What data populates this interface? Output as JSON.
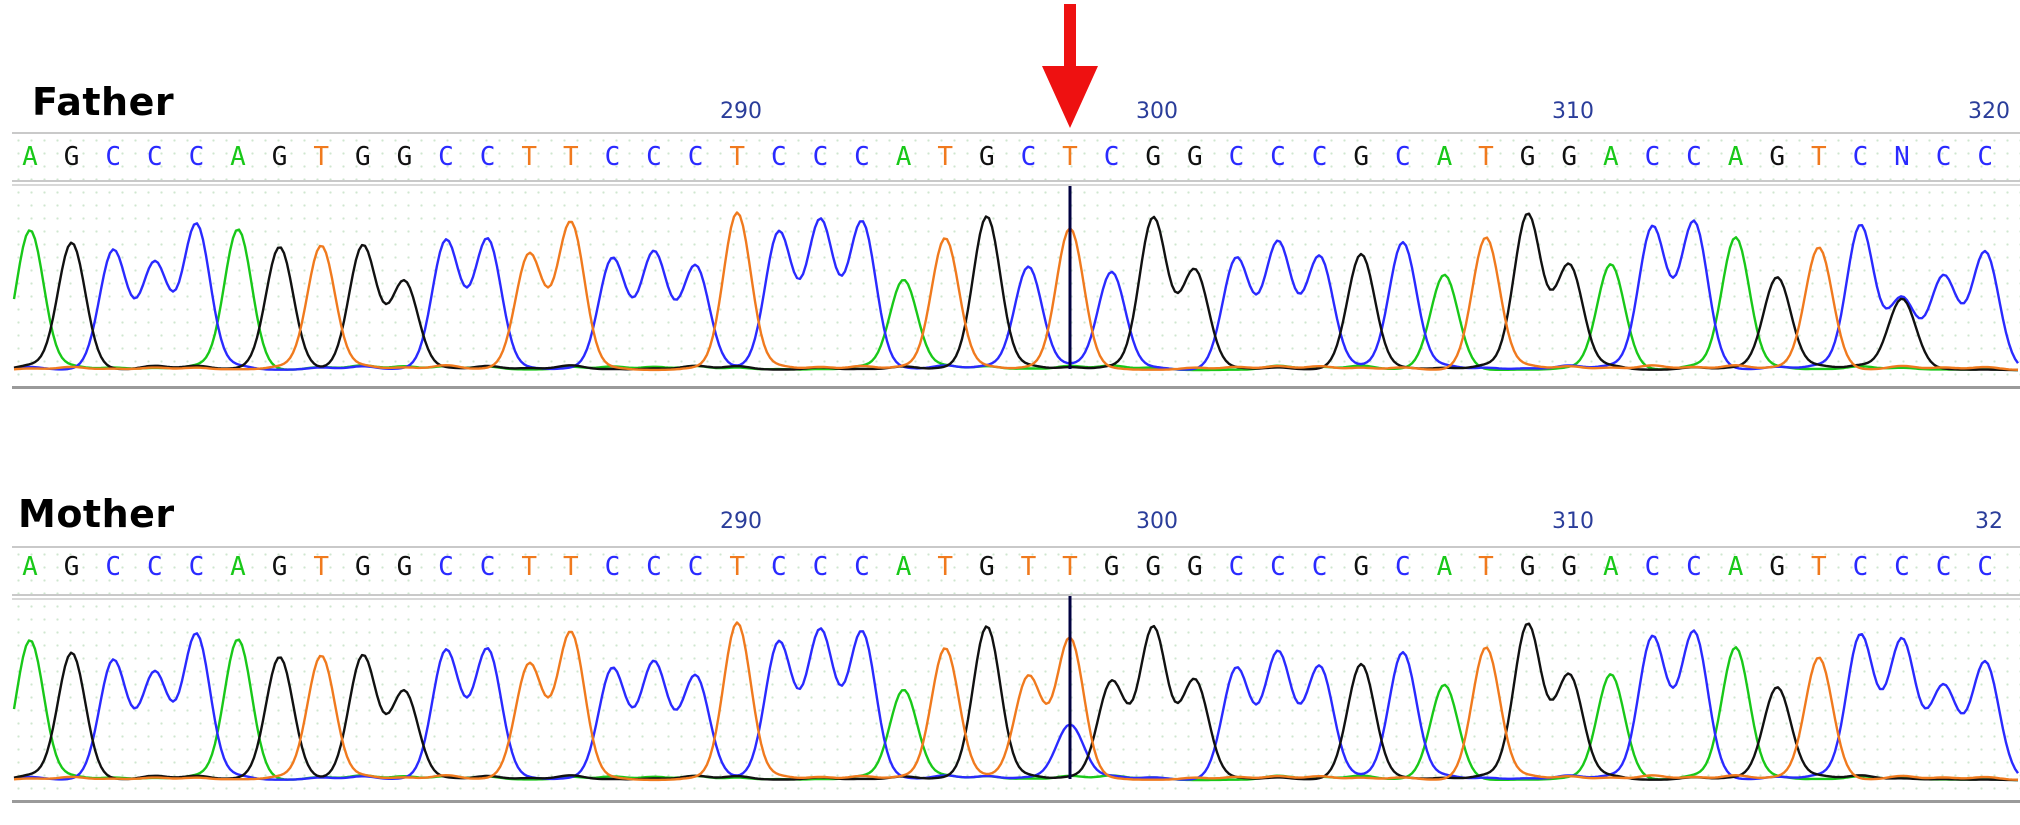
{
  "colors": {
    "A": "#19c819",
    "C": "#2a2aff",
    "G": "#111111",
    "T": "#f07a1e",
    "N": "#2a2aff",
    "cursor": "#000040",
    "arrow": "#ee1111",
    "ticks": "#2a3d9a"
  },
  "father": {
    "label": "Father",
    "sequence": "AGCCCAGTGGCCTTCCCTCCCATGCTCGGCCCGCATGGACCAGTCNCC",
    "ticks": [
      "290",
      "300",
      "310",
      "320"
    ],
    "marked_index": 25
  },
  "mother": {
    "label": "Mother",
    "sequence": "AGCCCAGTGGCCTTCCCTCCCATGTTGGGCCCGCATGGACCAGTCCCC",
    "ticks": [
      "290",
      "300",
      "310",
      "32"
    ],
    "marked_index": 25
  }
}
